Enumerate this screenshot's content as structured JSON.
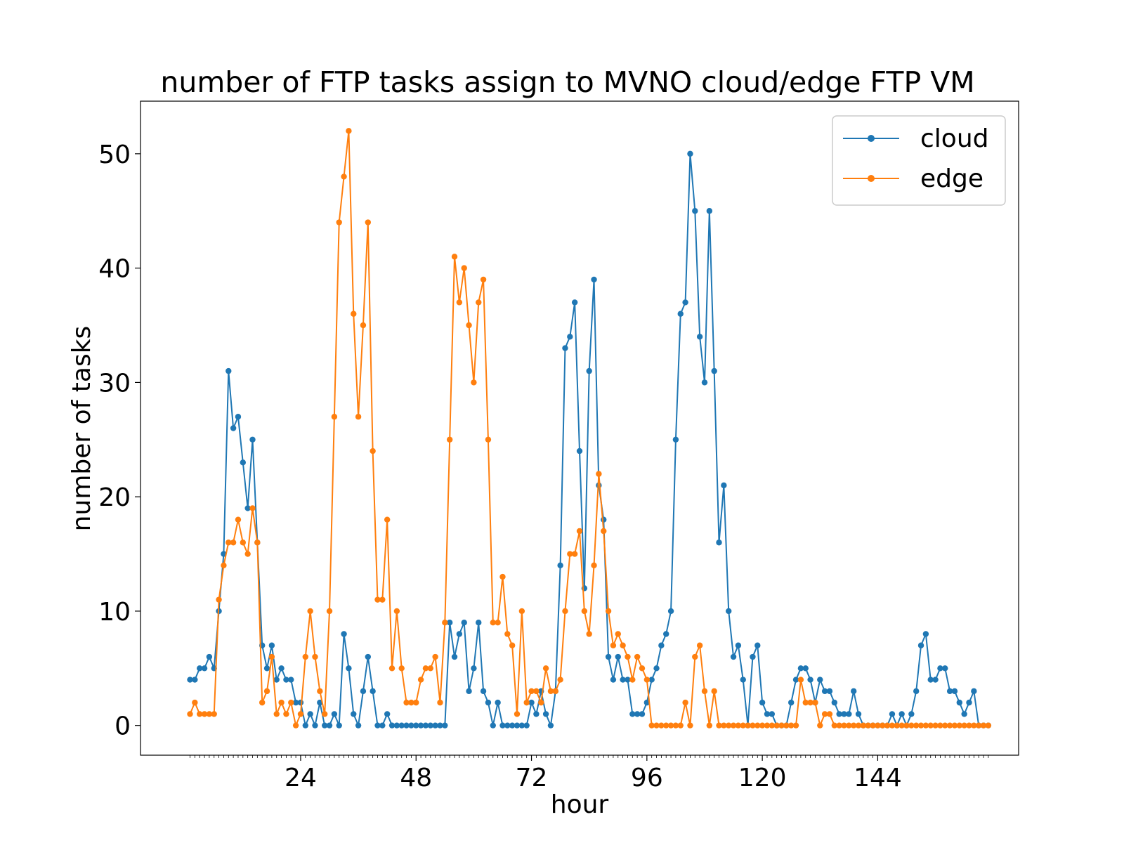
{
  "colors": {
    "cloud": "#1f77b4",
    "edge": "#ff7f0e"
  },
  "chart_data": {
    "type": "line",
    "title": "number of FTP tasks assign to MVNO cloud/edge FTP VM",
    "xlabel": "hour",
    "ylabel": "number of tasks",
    "xlim": [
      -9.3,
      173.3
    ],
    "ylim": [
      -2.6,
      54.6
    ],
    "x_start": 1,
    "x_step": 1,
    "x_ticks": [
      24,
      48,
      72,
      96,
      120,
      144
    ],
    "y_ticks": [
      0,
      10,
      20,
      30,
      40,
      50
    ],
    "legend_position": "top-right",
    "grid": false,
    "series": [
      {
        "name": "cloud",
        "color": "#1f77b4",
        "values": [
          4,
          4,
          5,
          5,
          6,
          5,
          10,
          15,
          31,
          26,
          27,
          23,
          19,
          25,
          16,
          7,
          5,
          7,
          4,
          5,
          4,
          4,
          2,
          2,
          0,
          1,
          0,
          2,
          0,
          0,
          1,
          0,
          8,
          5,
          1,
          0,
          3,
          6,
          3,
          0,
          0,
          1,
          0,
          0,
          0,
          0,
          0,
          0,
          0,
          0,
          0,
          0,
          0,
          0,
          9,
          6,
          8,
          9,
          3,
          5,
          9,
          3,
          2,
          0,
          2,
          0,
          0,
          0,
          0,
          0,
          0,
          2,
          1,
          3,
          1,
          0,
          3,
          14,
          33,
          34,
          37,
          24,
          12,
          31,
          39,
          21,
          18,
          6,
          4,
          6,
          4,
          4,
          1,
          1,
          1,
          2,
          4,
          5,
          7,
          8,
          10,
          25,
          36,
          37,
          50,
          45,
          34,
          30,
          45,
          31,
          16,
          21,
          10,
          6,
          7,
          4,
          0,
          6,
          7,
          2,
          1,
          1,
          0,
          0,
          0,
          2,
          4,
          5,
          5,
          4,
          2,
          4,
          3,
          3,
          2,
          1,
          1,
          1,
          3,
          1,
          0,
          0,
          0,
          0,
          0,
          0,
          1,
          0,
          1,
          0,
          1,
          3,
          7,
          8,
          4,
          4,
          5,
          5,
          3,
          3,
          2,
          1,
          2,
          3,
          0,
          0,
          0
        ]
      },
      {
        "name": "edge",
        "color": "#ff7f0e",
        "values": [
          1,
          2,
          1,
          1,
          1,
          1,
          11,
          14,
          16,
          16,
          18,
          16,
          15,
          19,
          16,
          2,
          3,
          6,
          1,
          2,
          1,
          2,
          0,
          1,
          6,
          10,
          6,
          3,
          1,
          10,
          27,
          44,
          48,
          52,
          36,
          27,
          35,
          44,
          24,
          11,
          11,
          18,
          5,
          10,
          5,
          2,
          2,
          2,
          4,
          5,
          5,
          6,
          2,
          9,
          25,
          41,
          37,
          40,
          35,
          30,
          37,
          39,
          25,
          9,
          9,
          13,
          8,
          7,
          1,
          10,
          2,
          3,
          3,
          2,
          5,
          3,
          3,
          4,
          10,
          15,
          15,
          17,
          10,
          8,
          14,
          22,
          17,
          10,
          7,
          8,
          7,
          6,
          4,
          6,
          5,
          4,
          0,
          0,
          0,
          0,
          0,
          0,
          0,
          2,
          0,
          6,
          7,
          3,
          0,
          3,
          0,
          0,
          0,
          0,
          0,
          0,
          0,
          0,
          0,
          0,
          0,
          0,
          0,
          0,
          0,
          0,
          0,
          4,
          2,
          2,
          2,
          0,
          1,
          1,
          0,
          0,
          0,
          0,
          0,
          0,
          0,
          0,
          0,
          0,
          0,
          0,
          0,
          0,
          0,
          0,
          0,
          0,
          0,
          0,
          0,
          0,
          0,
          0,
          0,
          0,
          0,
          0,
          0,
          0,
          0,
          0,
          0
        ]
      }
    ]
  }
}
